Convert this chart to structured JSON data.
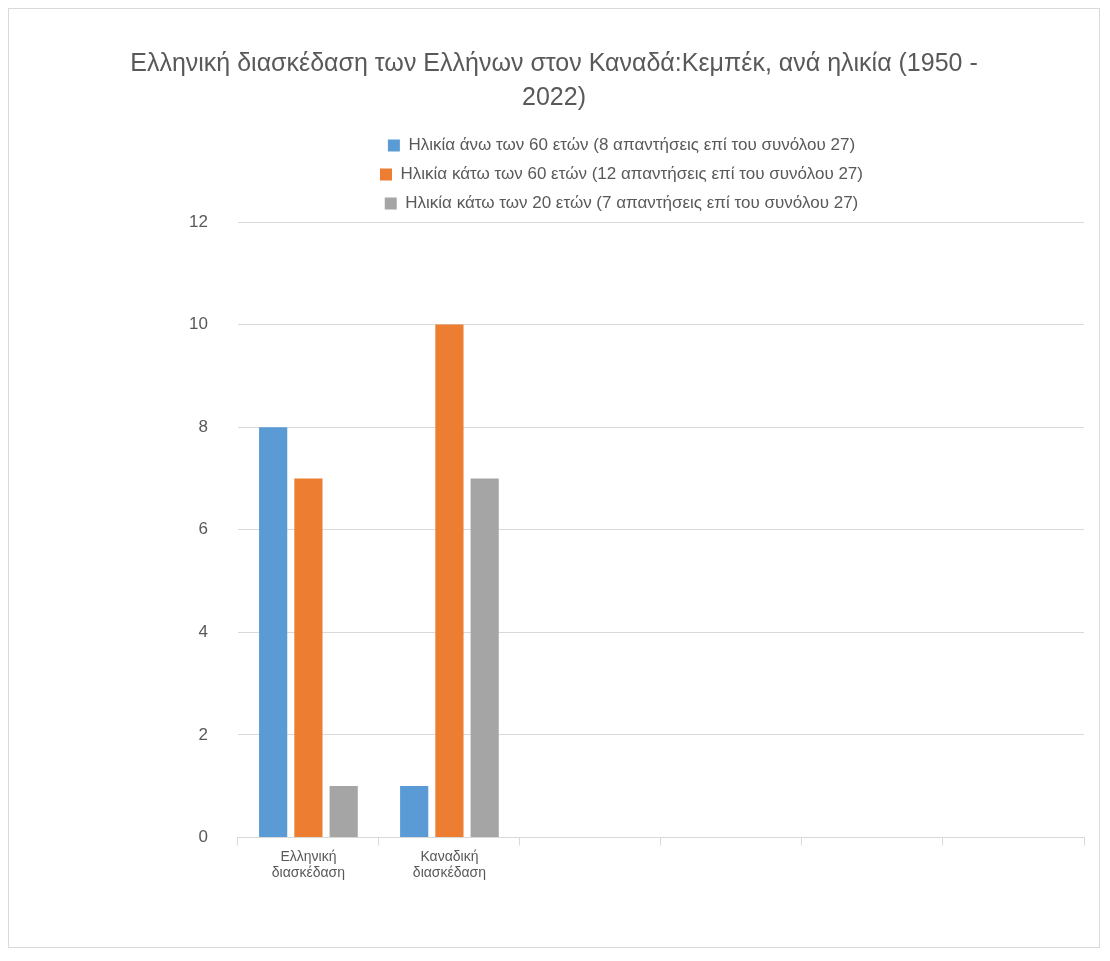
{
  "chart_data": {
    "type": "bar",
    "title": "Ελληνική διασκέδαση των Ελλήνων στον Καναδά:Κεμπέκ, ανά ηλικία (1950 - 2022)",
    "categories": [
      "Ελληνική διασκέδαση",
      "Καναδική διασκέδαση",
      null,
      null,
      null,
      null
    ],
    "series": [
      {
        "name": "Ηλικία άνω των 60 ετών (8 απαντήσεις επί του συνόλου 27)",
        "color": "#5b9bd5",
        "values": [
          8,
          1,
          null,
          null,
          null,
          null
        ]
      },
      {
        "name": "Ηλικία κάτω των 60 ετών (12 απαντήσεις επί του συνόλου 27)",
        "color": "#ed7d31",
        "values": [
          7,
          10,
          null,
          null,
          null,
          null
        ]
      },
      {
        "name": "Ηλικία κάτω των 20 ετών (7 απαντήσεις επί του συνόλου 27)",
        "color": "#a5a5a5",
        "values": [
          1,
          7,
          null,
          null,
          null,
          null
        ]
      }
    ],
    "ylim": [
      0,
      12
    ],
    "yticks": [
      0,
      2,
      4,
      6,
      8,
      10,
      12
    ],
    "grid": "y",
    "legend": "top"
  }
}
